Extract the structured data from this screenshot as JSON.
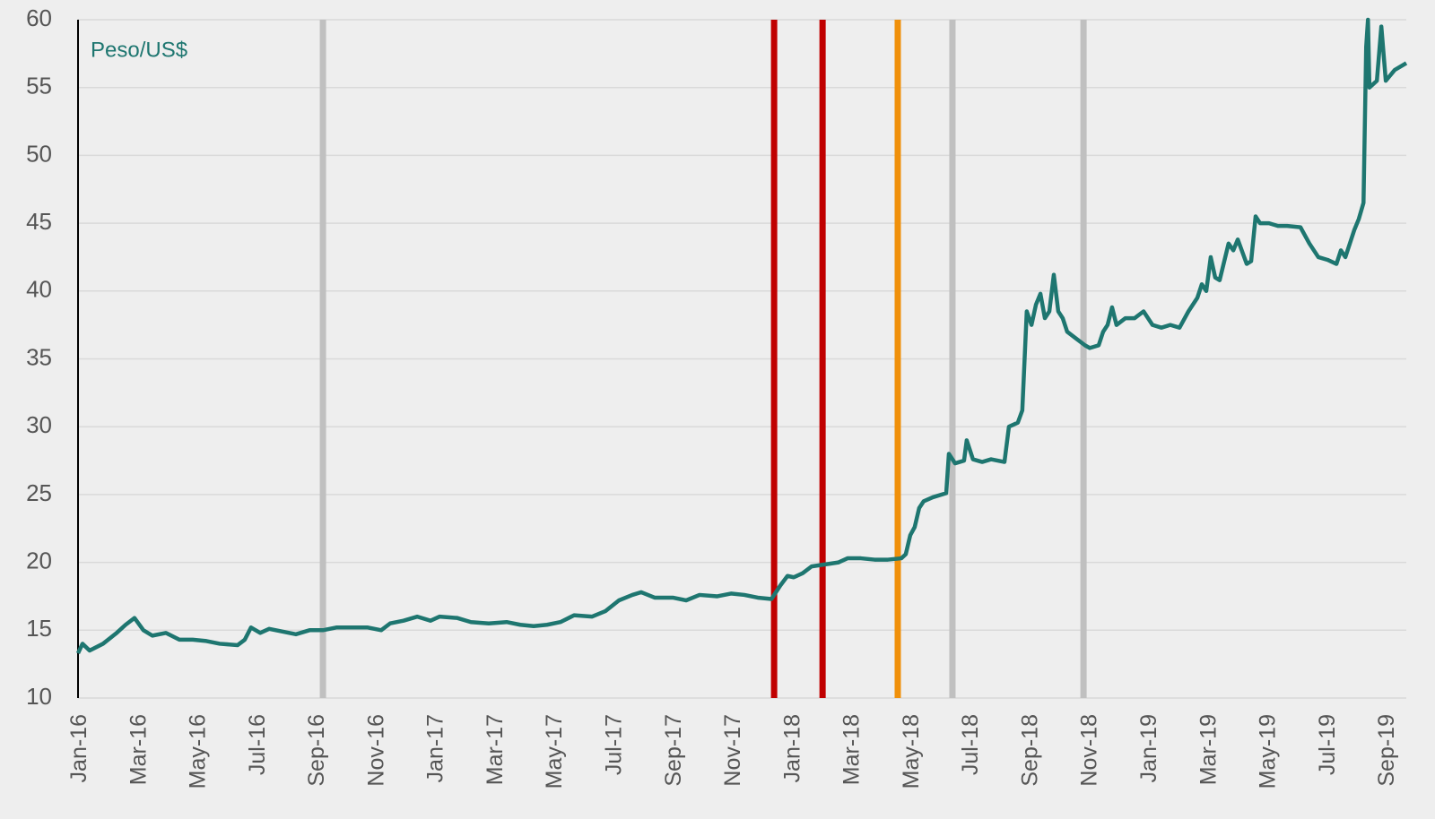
{
  "chart_data": {
    "type": "line",
    "annotation": "Peso/US$",
    "color": "#1e7670",
    "xlim": [
      0,
      44.69
    ],
    "xticks": [
      {
        "value": 0,
        "label": "Jan-16"
      },
      {
        "value": 2,
        "label": "Mar-16"
      },
      {
        "value": 4,
        "label": "May-16"
      },
      {
        "value": 6,
        "label": "Jul-16"
      },
      {
        "value": 8,
        "label": "Sep-16"
      },
      {
        "value": 10,
        "label": "Nov-16"
      },
      {
        "value": 12,
        "label": "Jan-17"
      },
      {
        "value": 14,
        "label": "Mar-17"
      },
      {
        "value": 16,
        "label": "May-17"
      },
      {
        "value": 18,
        "label": "Jul-17"
      },
      {
        "value": 20,
        "label": "Sep-17"
      },
      {
        "value": 22,
        "label": "Nov-17"
      },
      {
        "value": 24,
        "label": "Jan-18"
      },
      {
        "value": 26,
        "label": "Mar-18"
      },
      {
        "value": 28,
        "label": "May-18"
      },
      {
        "value": 30,
        "label": "Jul-18"
      },
      {
        "value": 32,
        "label": "Sep-18"
      },
      {
        "value": 34,
        "label": "Nov-18"
      },
      {
        "value": 36,
        "label": "Jan-19"
      },
      {
        "value": 38,
        "label": "Mar-19"
      },
      {
        "value": 40,
        "label": "May-19"
      },
      {
        "value": 42,
        "label": "Jul-19"
      },
      {
        "value": 44,
        "label": "Sep-19"
      }
    ],
    "ylim": [
      10,
      60
    ],
    "yticks": [
      10,
      15,
      20,
      25,
      30,
      35,
      40,
      45,
      50,
      55,
      60
    ],
    "grid": true,
    "vlines": [
      {
        "x": 8.24,
        "color": "#c0c0c0"
      },
      {
        "x": 23.42,
        "color": "#c00000"
      },
      {
        "x": 25.05,
        "color": "#c00000"
      },
      {
        "x": 27.58,
        "color": "#f0900a"
      },
      {
        "x": 29.42,
        "color": "#c0c0c0"
      },
      {
        "x": 33.83,
        "color": "#c0c0c0"
      }
    ],
    "x": [
      0,
      0.15,
      0.39,
      0.84,
      1.3,
      1.6,
      1.9,
      2.2,
      2.5,
      2.96,
      3.41,
      3.86,
      4.32,
      4.77,
      5.37,
      5.61,
      5.82,
      6.13,
      6.43,
      6.88,
      7.33,
      7.79,
      8.24,
      8.69,
      9.14,
      9.75,
      10.2,
      10.5,
      10.95,
      11.41,
      11.86,
      12.16,
      12.76,
      13.22,
      13.82,
      14.42,
      14.88,
      15.33,
      15.78,
      16.23,
      16.69,
      17.29,
      17.74,
      18.2,
      18.65,
      18.95,
      19.4,
      20.01,
      20.46,
      20.91,
      21.51,
      21.97,
      22.42,
      22.87,
      23.33,
      23.63,
      23.87,
      24.08,
      24.38,
      24.68,
      24.98,
      25.29,
      25.59,
      25.89,
      26.34,
      26.8,
      27.25,
      27.7,
      27.85,
      28.0,
      28.15,
      28.3,
      28.45,
      28.76,
      29.21,
      29.3,
      29.51,
      29.81,
      29.9,
      30.11,
      30.42,
      30.72,
      31.17,
      31.32,
      31.62,
      31.77,
      31.92,
      32.08,
      32.23,
      32.38,
      32.53,
      32.68,
      32.83,
      32.98,
      33.13,
      33.28,
      33.58,
      33.88,
      34.04,
      34.34,
      34.49,
      34.64,
      34.79,
      34.94,
      35.24,
      35.55,
      35.85,
      36.15,
      36.45,
      36.75,
      37.06,
      37.36,
      37.66,
      37.81,
      37.96,
      38.11,
      38.26,
      38.41,
      38.71,
      38.87,
      39.02,
      39.32,
      39.47,
      39.62,
      39.77,
      40.07,
      40.37,
      40.68,
      41.13,
      41.43,
      41.73,
      42.04,
      42.34,
      42.49,
      42.64,
      42.79,
      42.94,
      43.09,
      43.25,
      43.34,
      43.4,
      43.45,
      43.7,
      43.85,
      44.0,
      44.3,
      44.69
    ],
    "values": [
      13.3,
      14.0,
      13.5,
      14.0,
      14.8,
      15.4,
      15.9,
      15.0,
      14.6,
      14.8,
      14.3,
      14.3,
      14.2,
      14.0,
      13.9,
      14.3,
      15.2,
      14.8,
      15.1,
      14.9,
      14.7,
      15.0,
      15.0,
      15.2,
      15.2,
      15.2,
      15.0,
      15.5,
      15.7,
      16.0,
      15.7,
      16.0,
      15.9,
      15.6,
      15.5,
      15.6,
      15.4,
      15.3,
      15.4,
      15.6,
      16.1,
      16.0,
      16.4,
      17.2,
      17.6,
      17.8,
      17.4,
      17.4,
      17.2,
      17.6,
      17.5,
      17.7,
      17.6,
      17.4,
      17.3,
      18.3,
      19.0,
      18.9,
      19.2,
      19.7,
      19.8,
      19.9,
      20.0,
      20.3,
      20.3,
      20.2,
      20.2,
      20.3,
      20.6,
      22.0,
      22.6,
      24.0,
      24.5,
      24.8,
      25.1,
      28.0,
      27.3,
      27.5,
      29.0,
      27.6,
      27.4,
      27.6,
      27.4,
      30.0,
      30.3,
      31.2,
      38.5,
      37.5,
      39.0,
      39.8,
      38.0,
      38.5,
      41.2,
      38.5,
      38.0,
      37.0,
      36.5,
      36.0,
      35.8,
      36.0,
      37.0,
      37.5,
      38.8,
      37.5,
      38.0,
      38.0,
      38.5,
      37.5,
      37.3,
      37.5,
      37.3,
      38.5,
      39.5,
      40.5,
      40.0,
      42.5,
      41.0,
      40.8,
      43.5,
      43.0,
      43.8,
      42.0,
      42.2,
      45.5,
      45.0,
      45.0,
      44.8,
      44.8,
      44.7,
      43.5,
      42.5,
      42.3,
      42.0,
      43.0,
      42.5,
      43.5,
      44.5,
      45.3,
      46.5,
      58.0,
      60.0,
      55.0,
      55.5,
      59.5,
      55.5,
      56.3,
      56.8
    ]
  }
}
